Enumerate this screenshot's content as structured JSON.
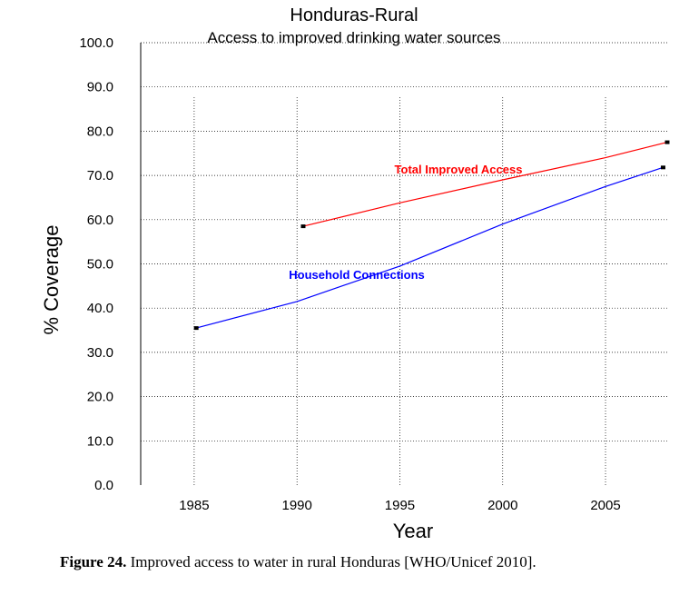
{
  "chart_data": {
    "type": "line",
    "title": "Honduras-Rural",
    "subtitle": "Access to improved drinking water sources",
    "xlabel": "Year",
    "ylabel": "% Coverage",
    "xlim": [
      1982.4,
      2008.0
    ],
    "ylim": [
      0,
      100
    ],
    "x_ticks": [
      "1985",
      "1990",
      "1995",
      "2000",
      "2005"
    ],
    "y_ticks": [
      "0.0",
      "10.0",
      "20.0",
      "30.0",
      "40.0",
      "50.0",
      "60.0",
      "70.0",
      "80.0",
      "90.0",
      "100.0"
    ],
    "grid": true,
    "series": [
      {
        "name": "Total Improved Access",
        "color": "#ff0000",
        "points": [
          [
            1990.3,
            58.5
          ],
          [
            1995,
            63.8
          ],
          [
            2000,
            69
          ],
          [
            2005,
            74
          ],
          [
            2008,
            77.5
          ]
        ],
        "markers": [
          [
            1990.3,
            58.5
          ],
          [
            2008,
            77.5
          ]
        ]
      },
      {
        "name": "Household Connections",
        "color": "#0000ff",
        "points": [
          [
            1985.1,
            35.5
          ],
          [
            1990,
            41.5
          ],
          [
            1995,
            49.5
          ],
          [
            2000,
            59
          ],
          [
            2005,
            67.5
          ],
          [
            2007.8,
            71.8
          ]
        ],
        "markers": [
          [
            1985.1,
            35.5
          ],
          [
            2007.8,
            71.8
          ]
        ]
      }
    ]
  },
  "caption": {
    "label": "Figure 24.",
    "text": "Improved access to water in rural Honduras [WHO/Unicef 2010]."
  }
}
